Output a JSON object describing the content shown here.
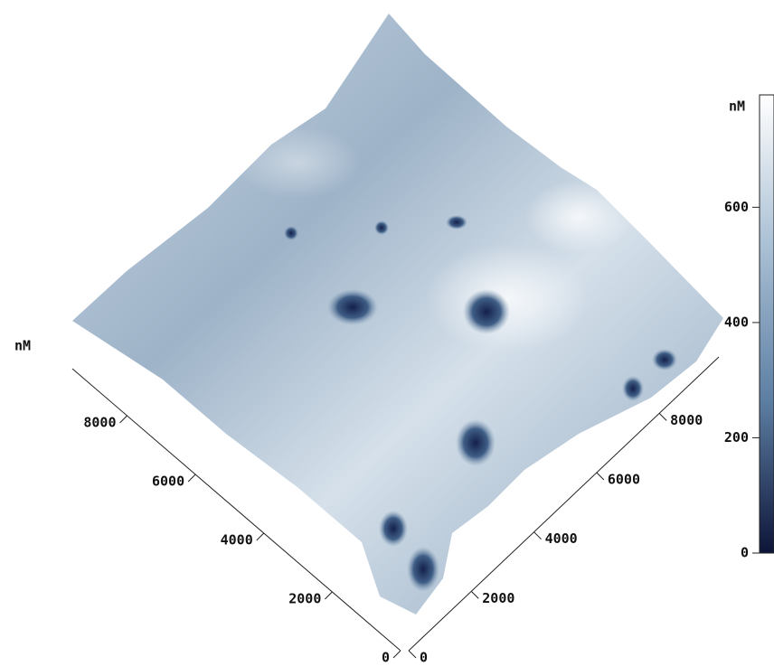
{
  "chart_data": {
    "type": "surface",
    "xlabel": "nM",
    "xlim": [
      0,
      9600
    ],
    "xticks": [
      0,
      2000,
      4000,
      6000,
      8000
    ],
    "ylim": [
      0,
      9900
    ],
    "yticks": [
      0,
      2000,
      4000,
      6000,
      8000
    ],
    "colorbar": {
      "label": "nM",
      "lim": [
        0,
        795
      ],
      "ticks": [
        0,
        200,
        400,
        600
      ],
      "colors": [
        "#0d1538",
        "#5d7fa3",
        "#a9bfd4",
        "#ffffff"
      ]
    }
  }
}
